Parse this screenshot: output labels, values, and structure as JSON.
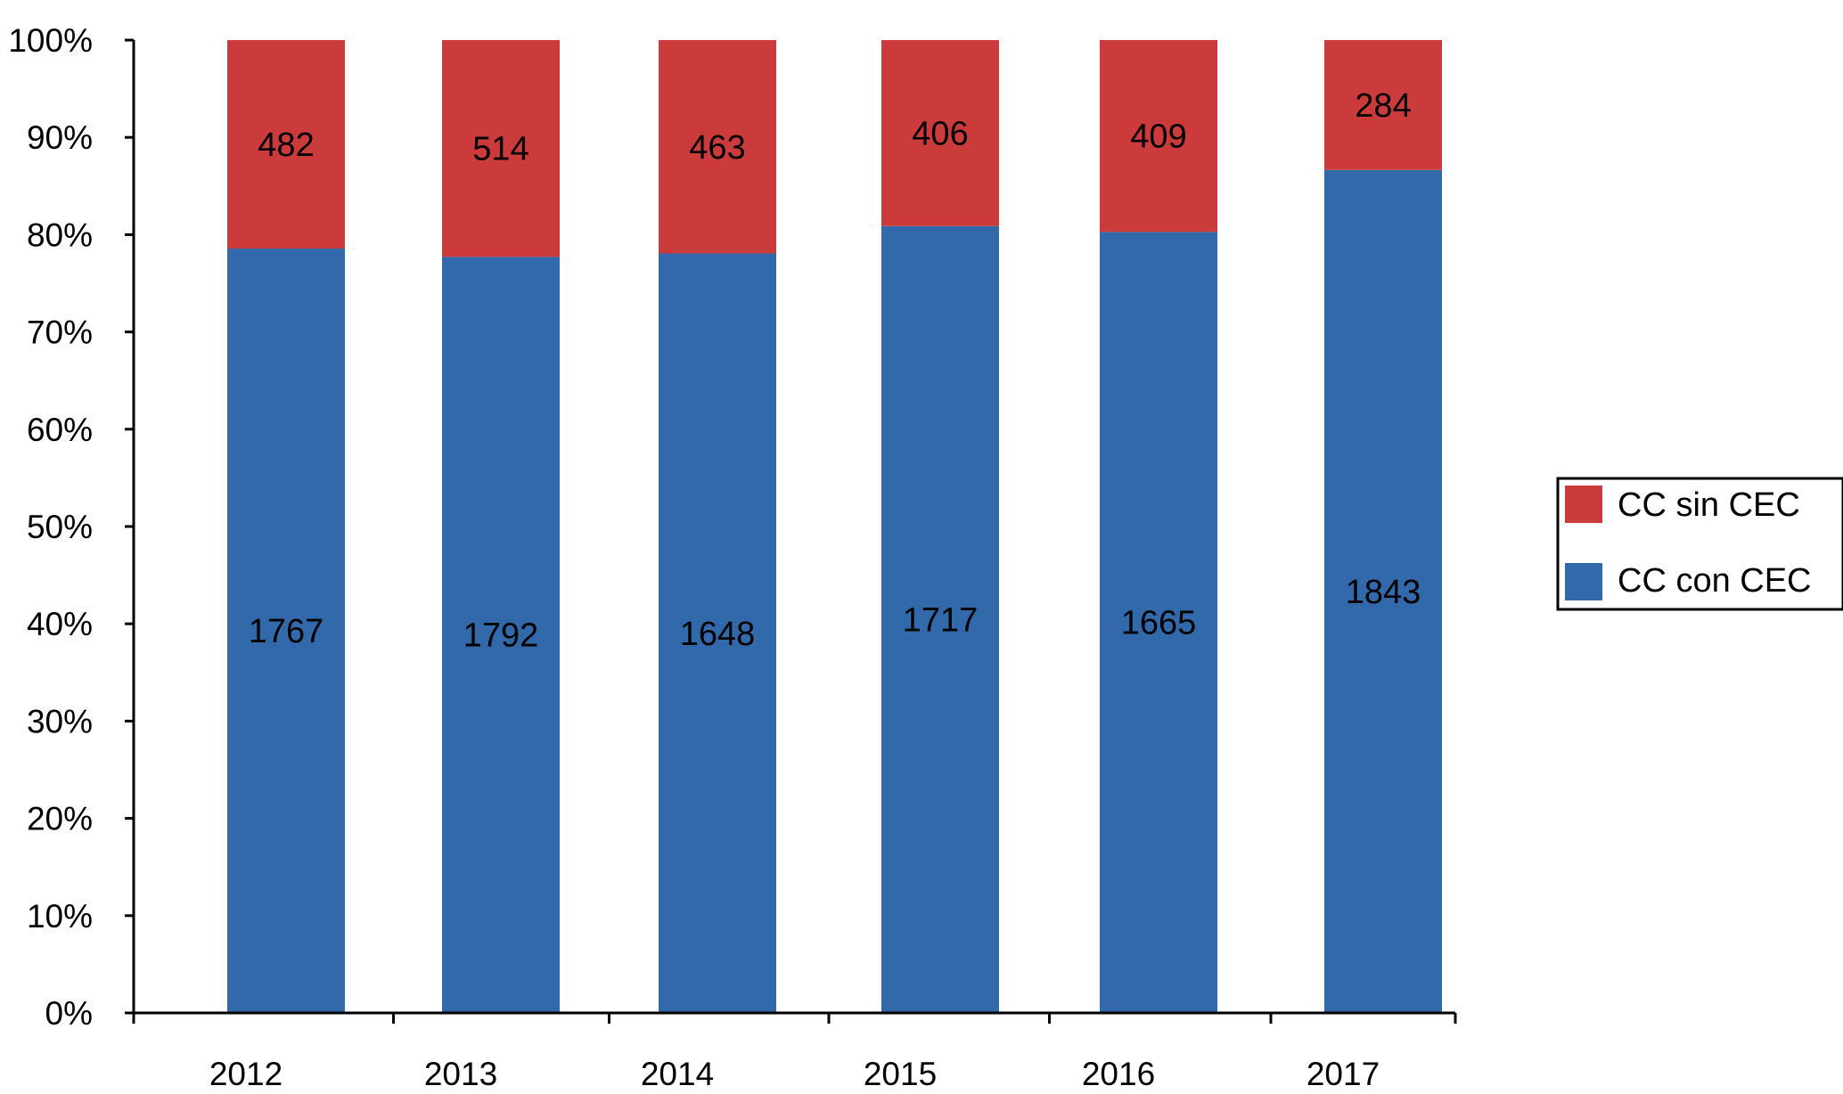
{
  "chart_data": {
    "type": "bar",
    "stacked": true,
    "normalized": true,
    "categories": [
      "2012",
      "2013",
      "2014",
      "2015",
      "2016",
      "2017"
    ],
    "series": [
      {
        "name": "CC con CEC",
        "color": "#3169aa",
        "values": [
          1767,
          1792,
          1648,
          1717,
          1665,
          1843
        ]
      },
      {
        "name": "CC sin CEC",
        "color": "#cc3b3b",
        "values": [
          482,
          514,
          463,
          406,
          409,
          284
        ]
      }
    ],
    "y_ticks": [
      "0%",
      "10%",
      "20%",
      "30%",
      "40%",
      "50%",
      "60%",
      "70%",
      "80%",
      "90%",
      "100%"
    ],
    "ylim": [
      0,
      100
    ],
    "title": "",
    "xlabel": "",
    "ylabel": "",
    "legend": {
      "position": "right",
      "entries": [
        "CC sin CEC",
        "CC con CEC"
      ]
    },
    "grid": false
  }
}
